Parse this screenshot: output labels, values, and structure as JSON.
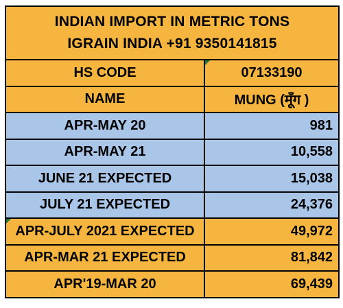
{
  "title": {
    "line1": "INDIAN IMPORT IN METRIC TONS",
    "line2": "IGRAIN INDIA +91 9350141815"
  },
  "header_rows": [
    {
      "label": "HS CODE",
      "value": "07133190"
    },
    {
      "label": "NAME",
      "value": "MUNG (मूँग )"
    }
  ],
  "data_rows": [
    {
      "label": "APR-MAY 20",
      "value": "981"
    },
    {
      "label": "APR-MAY 21",
      "value": "10,558"
    },
    {
      "label": "JUNE 21 EXPECTED",
      "value": "15,038"
    },
    {
      "label": "JULY 21 EXPECTED",
      "value": "24,376"
    }
  ],
  "summary_rows": [
    {
      "label": "APR-JULY 2021 EXPECTED",
      "value": "49,972"
    },
    {
      "label": "APR-MAR 21 EXPECTED",
      "value": "81,842"
    },
    {
      "label": "APR'19-MAR 20",
      "value": "69,439"
    }
  ],
  "colors": {
    "orange": "#f5b53f",
    "blue": "#a9c5e8",
    "comment_marker": "#1f7a3a"
  }
}
